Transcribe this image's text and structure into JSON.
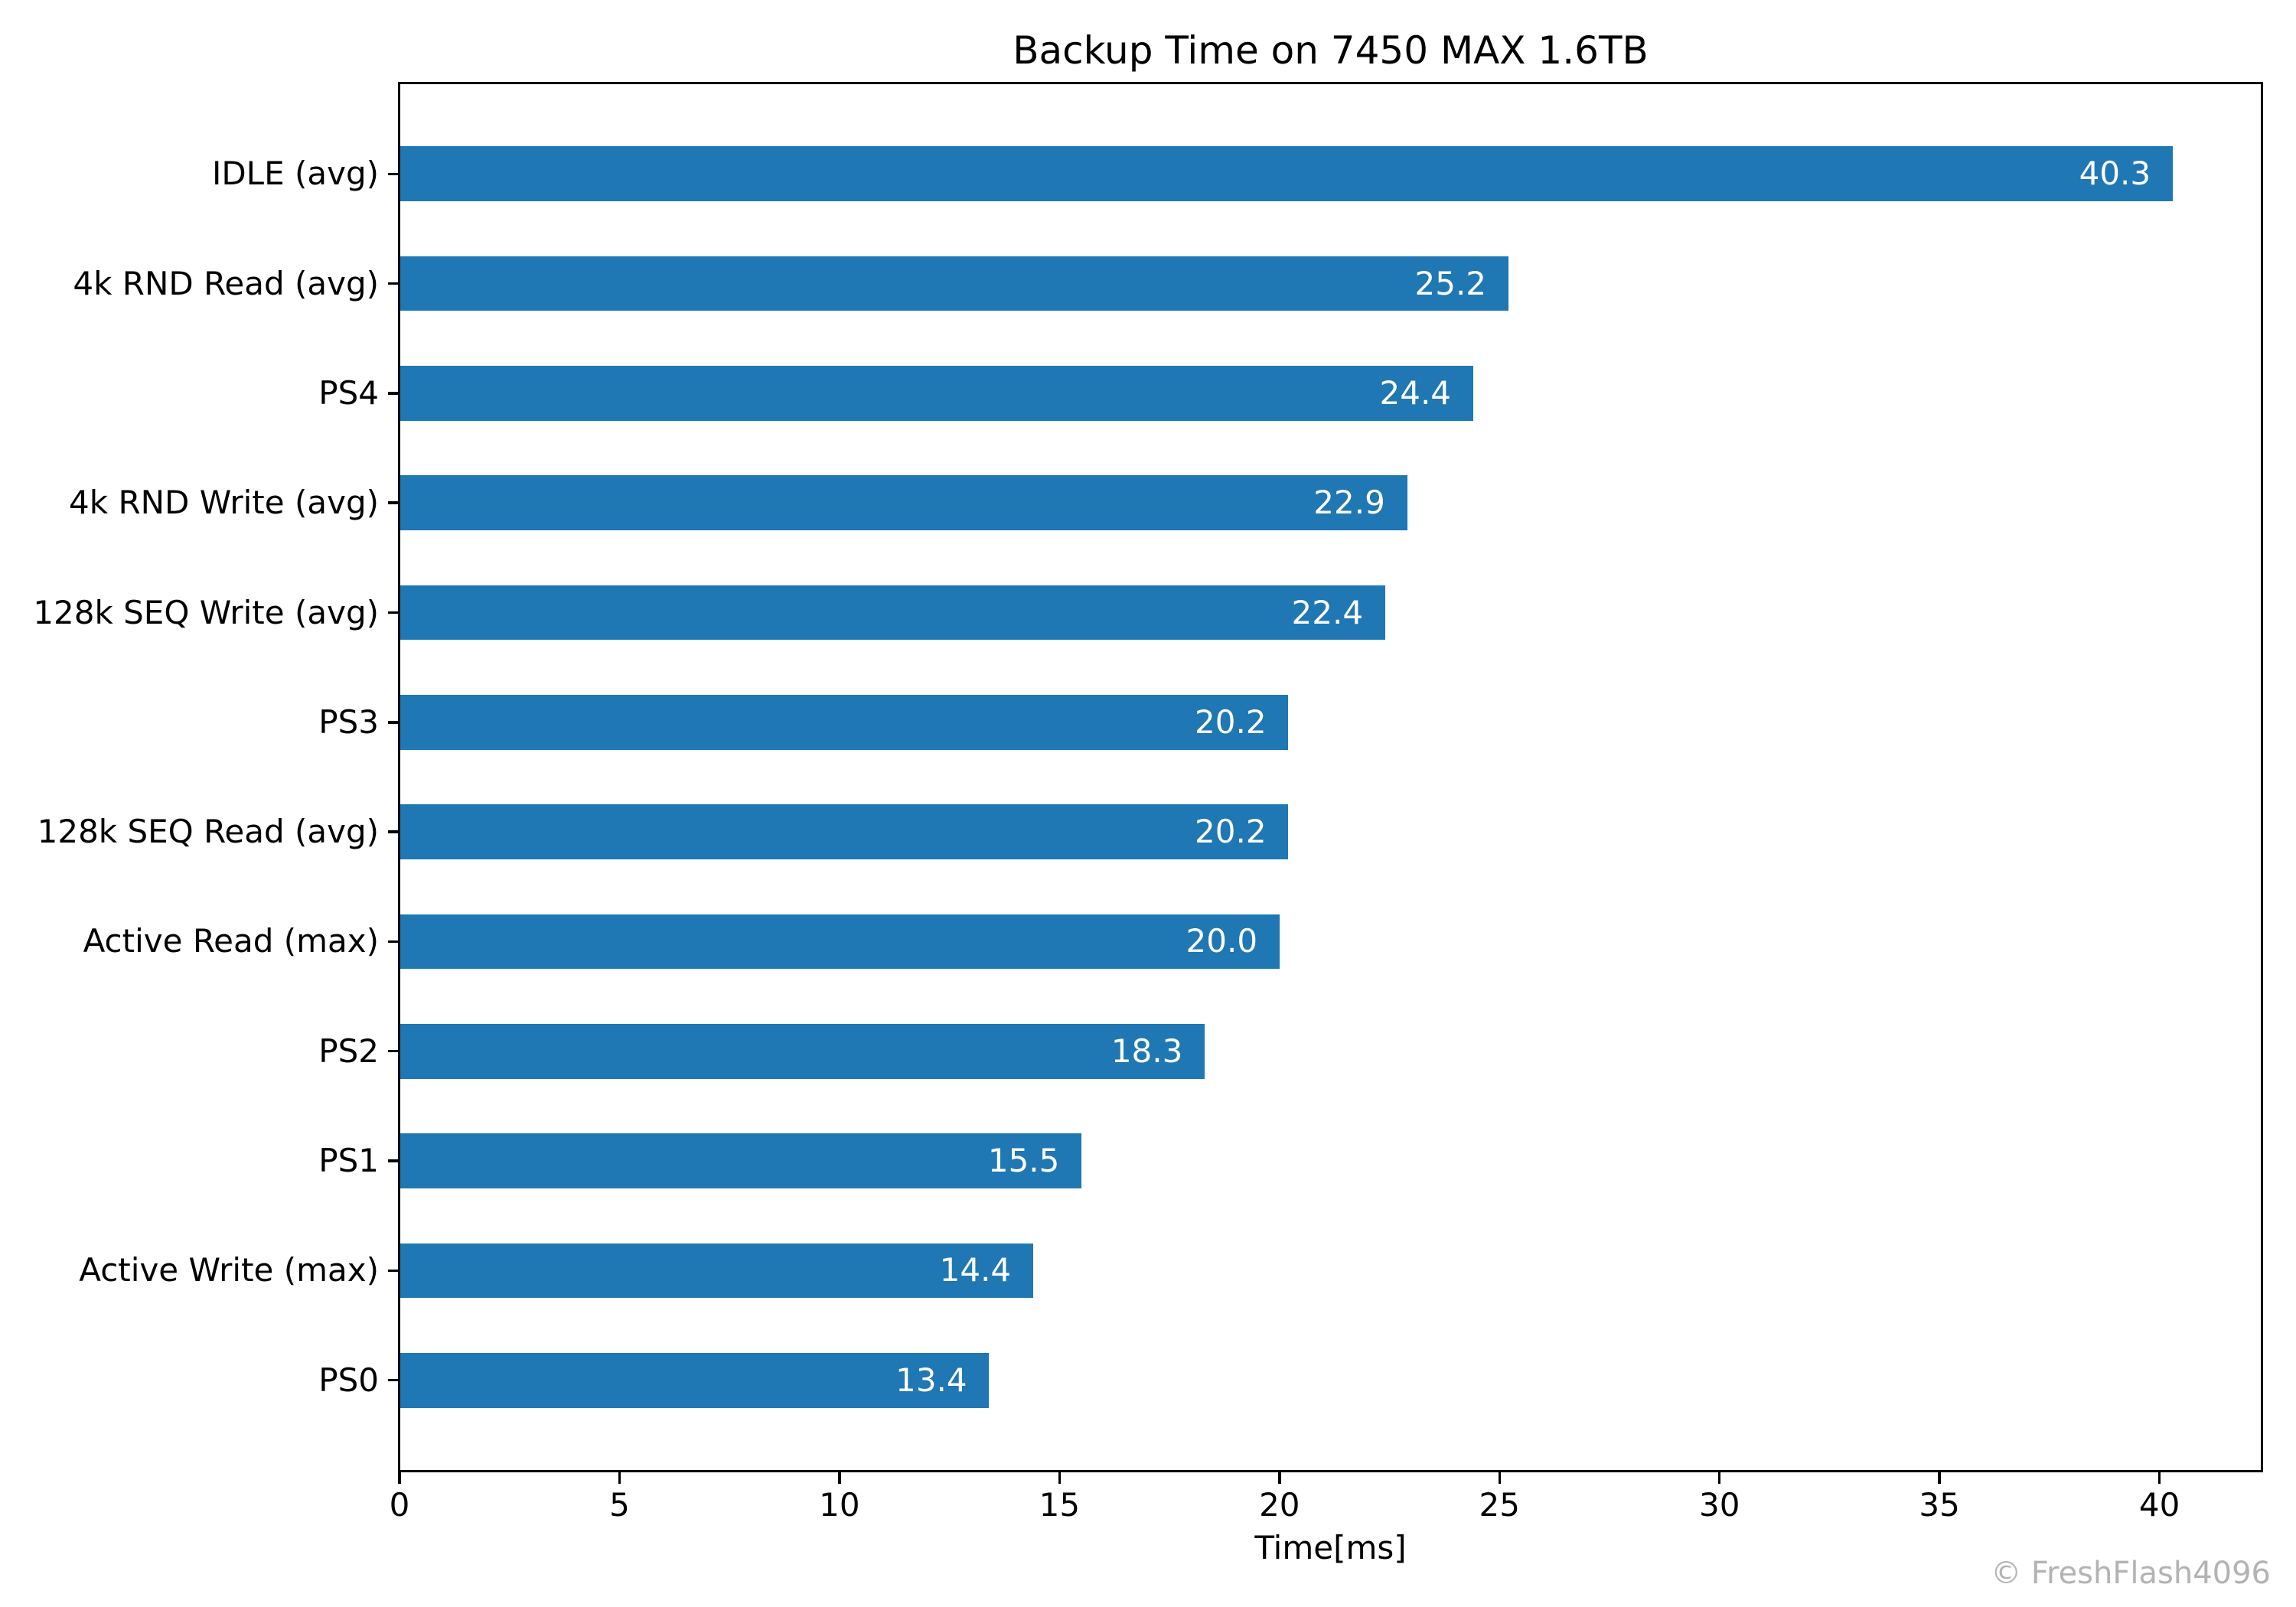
{
  "figure": {
    "title": "Backup Time on 7450 MAX 1.6TB",
    "xlabel": "Time[ms]",
    "watermark": "© FreshFlash4096"
  },
  "chart_data": {
    "type": "bar",
    "orientation": "horizontal",
    "title": "Backup Time on 7450 MAX 1.6TB",
    "xlabel": "Time[ms]",
    "ylabel": "",
    "categories": [
      "IDLE (avg)",
      "4k RND Read (avg)",
      "PS4",
      "4k RND Write (avg)",
      "128k SEQ Write (avg)",
      "PS3",
      "128k SEQ Read (avg)",
      "Active Read (max)",
      "PS2",
      "PS1",
      "Active Write (max)",
      "PS0"
    ],
    "values": [
      40.3,
      25.2,
      24.4,
      22.9,
      22.4,
      20.2,
      20.2,
      20.0,
      18.3,
      15.5,
      14.4,
      13.4
    ],
    "value_labels": [
      "40.3",
      "25.2",
      "24.4",
      "22.9",
      "22.4",
      "20.2",
      "20.2",
      "20.0",
      "18.3",
      "15.5",
      "14.4",
      "13.4"
    ],
    "xticks": [
      0,
      5,
      10,
      15,
      20,
      25,
      30,
      35,
      40
    ],
    "xtick_labels": [
      "0",
      "5",
      "10",
      "15",
      "20",
      "25",
      "30",
      "35",
      "40"
    ],
    "xlim": [
      0,
      42.32
    ],
    "grid": false,
    "legend_position": "none",
    "bar_color": "#1f77b4",
    "value_label_color": "#ffffff",
    "axis_color": "#000000",
    "watermark": "© FreshFlash4096",
    "watermark_color": "#b3b3b3",
    "bar_height_fraction": 0.5
  }
}
